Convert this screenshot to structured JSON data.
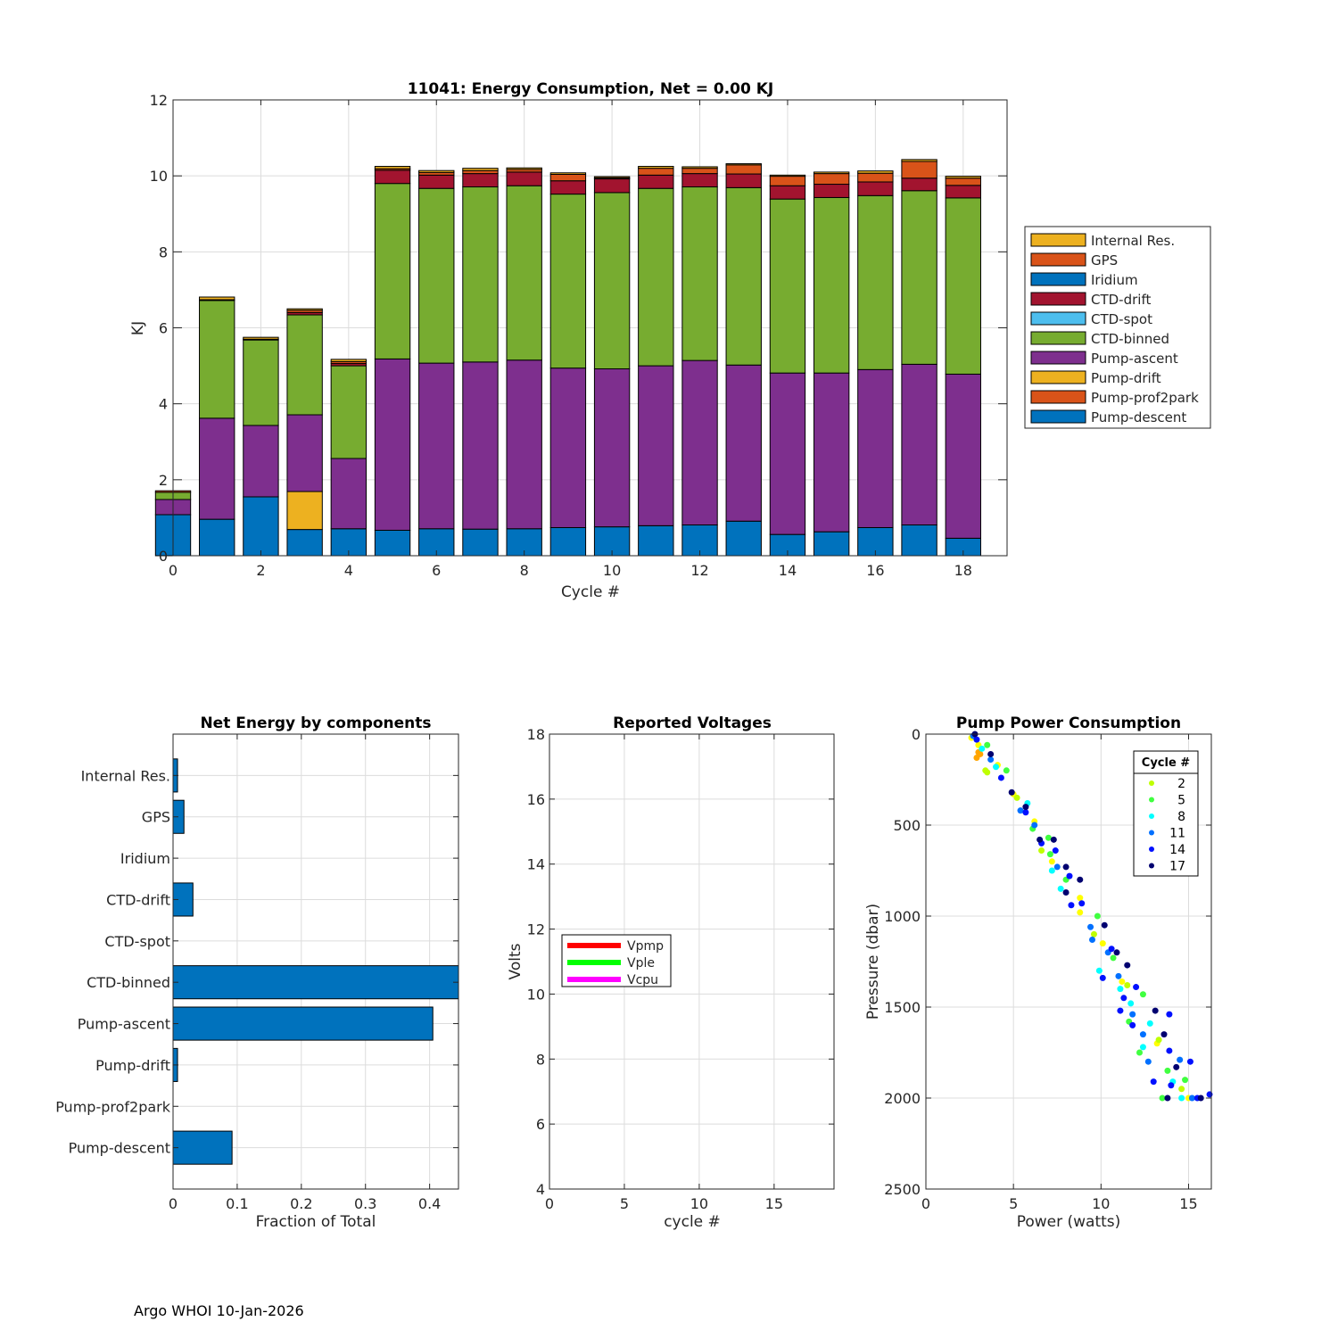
{
  "footer": {
    "text": "Argo WHOI 10-Jan-2026"
  },
  "chart_data": [
    {
      "id": "energy",
      "type": "bar",
      "stacked": true,
      "title": "11041: Energy Consumption,  Net =   0.00 KJ",
      "xlabel": "Cycle #",
      "ylabel": "KJ",
      "xlim": [
        0,
        19
      ],
      "ylim": [
        0,
        12
      ],
      "xticks": [
        0,
        2,
        4,
        6,
        8,
        10,
        12,
        14,
        16,
        18
      ],
      "yticks": [
        0,
        2,
        4,
        6,
        8,
        10,
        12
      ],
      "grid": true,
      "legend_position": "outside-right",
      "categories": [
        0,
        1,
        2,
        3,
        4,
        5,
        6,
        7,
        8,
        9,
        10,
        11,
        12,
        13,
        14,
        15,
        16,
        17,
        18
      ],
      "series": [
        {
          "name": "Pump-descent",
          "color": "#0072BD",
          "values": [
            1.08,
            0.96,
            1.55,
            0.69,
            0.71,
            0.67,
            0.71,
            0.7,
            0.71,
            0.74,
            0.76,
            0.79,
            0.81,
            0.91,
            0.56,
            0.63,
            0.74,
            0.81,
            0.46
          ]
        },
        {
          "name": "Pump-prof2park",
          "color": "#D95319",
          "values": [
            0,
            0,
            0,
            0,
            0,
            0,
            0,
            0,
            0,
            0,
            0,
            0,
            0,
            0,
            0,
            0,
            0,
            0,
            0
          ]
        },
        {
          "name": "Pump-drift",
          "color": "#EDB120",
          "values": [
            0,
            0,
            0,
            1.0,
            0,
            0,
            0,
            0,
            0,
            0,
            0,
            0,
            0,
            0,
            0,
            0,
            0,
            0,
            0
          ]
        },
        {
          "name": "Pump-ascent",
          "color": "#7E2F8E",
          "values": [
            0.4,
            2.66,
            1.88,
            2.02,
            1.85,
            4.51,
            4.36,
            4.4,
            4.44,
            4.2,
            4.16,
            4.21,
            4.33,
            4.11,
            4.25,
            4.18,
            4.16,
            4.23,
            4.32
          ]
        },
        {
          "name": "CTD-binned",
          "color": "#77AC30",
          "values": [
            0.19,
            3.1,
            2.25,
            2.63,
            2.44,
            4.62,
            4.6,
            4.61,
            4.59,
            4.58,
            4.64,
            4.67,
            4.57,
            4.67,
            4.58,
            4.62,
            4.58,
            4.57,
            4.64
          ]
        },
        {
          "name": "CTD-spot",
          "color": "#4DBEEE",
          "values": [
            0,
            0,
            0,
            0,
            0,
            0,
            0,
            0,
            0,
            0,
            0,
            0,
            0,
            0,
            0,
            0,
            0,
            0,
            0
          ]
        },
        {
          "name": "CTD-drift",
          "color": "#A2142F",
          "values": [
            0,
            0.02,
            0.02,
            0.06,
            0.06,
            0.35,
            0.35,
            0.35,
            0.36,
            0.35,
            0.36,
            0.35,
            0.35,
            0.36,
            0.35,
            0.35,
            0.36,
            0.33,
            0.33
          ]
        },
        {
          "name": "GPS",
          "color": "#D95319",
          "values": [
            0.04,
            0,
            0,
            0.06,
            0.05,
            0.04,
            0.07,
            0.08,
            0.07,
            0.17,
            0.03,
            0.18,
            0.14,
            0.24,
            0.25,
            0.28,
            0.23,
            0.44,
            0.19
          ]
        },
        {
          "name": "Iridium",
          "color": "#0072BD",
          "values": [
            0,
            0,
            0,
            0,
            0,
            0,
            0,
            0,
            0,
            0,
            0,
            0,
            0,
            0,
            0,
            0,
            0,
            0,
            0
          ]
        },
        {
          "name": "Internal Res.",
          "color": "#EDB120",
          "values": [
            0,
            0.07,
            0.05,
            0.04,
            0.06,
            0.06,
            0.05,
            0.06,
            0.04,
            0.04,
            0.03,
            0.05,
            0.04,
            0.03,
            0.03,
            0.04,
            0.06,
            0.05,
            0.05
          ]
        }
      ],
      "legend_order": [
        "Internal Res.",
        "GPS",
        "Iridium",
        "CTD-drift",
        "CTD-spot",
        "CTD-binned",
        "Pump-ascent",
        "Pump-drift",
        "Pump-prof2park",
        "Pump-descent"
      ]
    },
    {
      "id": "components",
      "type": "bar",
      "orientation": "horizontal",
      "title": "Net Energy by components",
      "xlabel": "Fraction of Total",
      "ylabel": "",
      "xlim": [
        0,
        0.445
      ],
      "xticks": [
        0,
        0.1,
        0.2,
        0.3,
        0.4
      ],
      "xticklabels": [
        "0",
        "0.1",
        "0.2",
        "0.3",
        "0.4"
      ],
      "grid": true,
      "bar_color": "#0072BD",
      "categories": [
        "Internal Res.",
        "GPS",
        "Iridium",
        "CTD-drift",
        "CTD-spot",
        "CTD-binned",
        "Pump-ascent",
        "Pump-drift",
        "Pump-prof2park",
        "Pump-descent"
      ],
      "values": [
        0.007,
        0.017,
        0,
        0.031,
        0,
        0.445,
        0.405,
        0.007,
        0,
        0.092
      ]
    },
    {
      "id": "voltages",
      "type": "line",
      "title": "Reported Voltages",
      "xlabel": "cycle #",
      "ylabel": "Volts",
      "xlim": [
        0,
        19
      ],
      "ylim": [
        4,
        18
      ],
      "xticks": [
        0,
        5,
        10,
        15
      ],
      "yticks": [
        4,
        6,
        8,
        10,
        12,
        14,
        16,
        18
      ],
      "grid": true,
      "legend_position": "middle-left",
      "series": [
        {
          "name": "Vpmp",
          "color": "#FF0000",
          "x": [],
          "y": []
        },
        {
          "name": "Vple",
          "color": "#00FF00",
          "x": [],
          "y": []
        },
        {
          "name": "Vcpu",
          "color": "#FF00FF",
          "x": [],
          "y": []
        }
      ]
    },
    {
      "id": "pump",
      "type": "scatter",
      "title": "Pump Power Consumption",
      "xlabel": "Power (watts)",
      "ylabel": "Pressure (dbar)",
      "xlim": [
        0,
        16.3
      ],
      "ylim": [
        2500,
        0
      ],
      "xticks": [
        0,
        5,
        10,
        15
      ],
      "yticks": [
        0,
        500,
        1000,
        1500,
        2000,
        2500
      ],
      "grid": true,
      "legend_title": "Cycle #",
      "legend_position": "top-right",
      "legend": [
        {
          "label": "2",
          "color": "#BFFF00"
        },
        {
          "label": "5",
          "color": "#40FF40"
        },
        {
          "label": "8",
          "color": "#00FFFF"
        },
        {
          "label": "11",
          "color": "#0070FF"
        },
        {
          "label": "14",
          "color": "#0010FF"
        },
        {
          "label": "17",
          "color": "#000070"
        }
      ],
      "series": [
        {
          "cycle": 0,
          "color": "#FFFF00",
          "points": [
            [
              2.6,
              20
            ],
            [
              3.0,
              60
            ],
            [
              4.1,
              170
            ],
            [
              5.0,
              330
            ],
            [
              6.2,
              480
            ],
            [
              7.2,
              700
            ],
            [
              8.8,
              900
            ],
            [
              8.8,
              980
            ],
            [
              10.1,
              1150
            ],
            [
              11.2,
              1360
            ],
            [
              13.2,
              1700
            ],
            [
              15.0,
              2000
            ]
          ]
        },
        {
          "cycle": 1,
          "color": "#FFA500",
          "points": [
            [
              3.0,
              100
            ],
            [
              2.9,
              130
            ],
            [
              3.1,
              110
            ]
          ]
        },
        {
          "cycle": 2,
          "color": "#BFFF00",
          "points": [
            [
              3.4,
              200
            ],
            [
              3.5,
              210
            ],
            [
              5.2,
              350
            ],
            [
              6.6,
              640
            ],
            [
              9.6,
              1100
            ],
            [
              11.5,
              1380
            ],
            [
              13.3,
              1680
            ],
            [
              14.6,
              1950
            ]
          ]
        },
        {
          "cycle": 5,
          "color": "#40FF40",
          "points": [
            [
              3.5,
              60
            ],
            [
              4.6,
              200
            ],
            [
              6.1,
              520
            ],
            [
              7.0,
              570
            ],
            [
              7.1,
              660
            ],
            [
              8.0,
              800
            ],
            [
              9.8,
              1000
            ],
            [
              10.7,
              1230
            ],
            [
              12.4,
              1430
            ],
            [
              11.6,
              1580
            ],
            [
              12.2,
              1750
            ],
            [
              13.8,
              1850
            ],
            [
              14.8,
              1900
            ],
            [
              13.5,
              2000
            ]
          ]
        },
        {
          "cycle": 8,
          "color": "#00FFFF",
          "points": [
            [
              3.2,
              80
            ],
            [
              4.0,
              180
            ],
            [
              5.8,
              380
            ],
            [
              7.2,
              750
            ],
            [
              7.7,
              850
            ],
            [
              9.9,
              1300
            ],
            [
              11.1,
              1400
            ],
            [
              11.7,
              1480
            ],
            [
              12.4,
              1720
            ],
            [
              12.8,
              1590
            ],
            [
              14.1,
              1910
            ],
            [
              14.6,
              2000
            ]
          ]
        },
        {
          "cycle": 11,
          "color": "#0070FF",
          "points": [
            [
              2.7,
              10
            ],
            [
              3.7,
              140
            ],
            [
              5.4,
              420
            ],
            [
              6.2,
              500
            ],
            [
              7.5,
              730
            ],
            [
              9.4,
              1060
            ],
            [
              9.5,
              1130
            ],
            [
              10.4,
              1200
            ],
            [
              11.0,
              1330
            ],
            [
              11.8,
              1540
            ],
            [
              12.4,
              1650
            ],
            [
              12.7,
              1800
            ],
            [
              14.5,
              1790
            ],
            [
              15.2,
              2000
            ]
          ]
        },
        {
          "cycle": 14,
          "color": "#0010FF",
          "points": [
            [
              2.9,
              30
            ],
            [
              4.3,
              240
            ],
            [
              5.7,
              430
            ],
            [
              6.6,
              600
            ],
            [
              7.4,
              640
            ],
            [
              8.2,
              780
            ],
            [
              8.3,
              940
            ],
            [
              8.9,
              930
            ],
            [
              10.6,
              1180
            ],
            [
              10.1,
              1340
            ],
            [
              11.3,
              1450
            ],
            [
              11.1,
              1520
            ],
            [
              11.8,
              1600
            ],
            [
              12.0,
              1390
            ],
            [
              13.9,
              1540
            ],
            [
              13.9,
              1740
            ],
            [
              15.1,
              1800
            ],
            [
              13.0,
              1910
            ],
            [
              14.0,
              1930
            ],
            [
              15.5,
              2000
            ],
            [
              16.2,
              1980
            ]
          ]
        },
        {
          "cycle": 17,
          "color": "#000070",
          "points": [
            [
              2.8,
              0
            ],
            [
              3.7,
              110
            ],
            [
              4.9,
              320
            ],
            [
              5.7,
              400
            ],
            [
              6.5,
              580
            ],
            [
              7.3,
              580
            ],
            [
              8.0,
              730
            ],
            [
              8.0,
              870
            ],
            [
              8.8,
              800
            ],
            [
              10.2,
              1050
            ],
            [
              10.9,
              1200
            ],
            [
              11.5,
              1270
            ],
            [
              13.1,
              1520
            ],
            [
              13.6,
              1650
            ],
            [
              14.3,
              1830
            ],
            [
              13.8,
              2000
            ],
            [
              15.7,
              2000
            ]
          ]
        }
      ]
    }
  ]
}
